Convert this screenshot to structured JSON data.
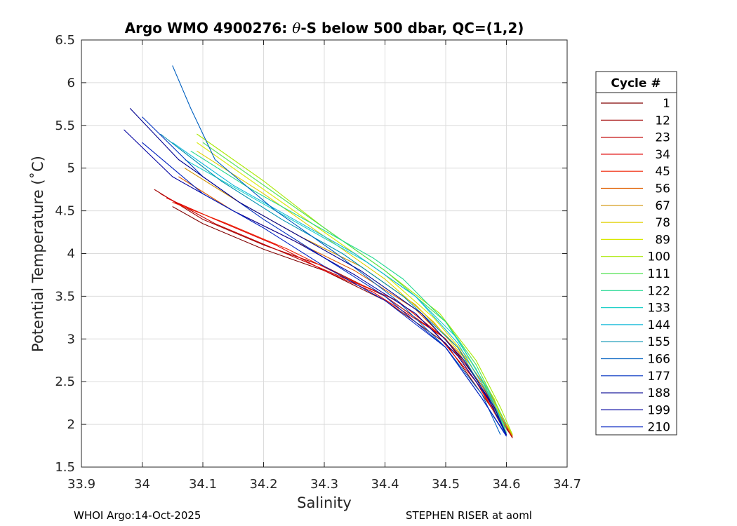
{
  "chart_data": {
    "type": "line",
    "title": "Argo WMO 4900276: θ-S below 500 dbar,  QC=(1,2)",
    "title_parts": {
      "prefix": "Argo WMO 4900276: ",
      "theta": "θ",
      "suffix": "-S below 500 dbar,  QC=(1,2)"
    },
    "xlabel": "Salinity",
    "ylabel": "Potential Temperature (˚C)",
    "xlim": [
      33.9,
      34.7
    ],
    "ylim": [
      1.5,
      6.5
    ],
    "xticks": [
      "33.9",
      "34",
      "34.1",
      "34.2",
      "34.3",
      "34.4",
      "34.5",
      "34.6",
      "34.7"
    ],
    "yticks": [
      "1.5",
      "2",
      "2.5",
      "3",
      "3.5",
      "4",
      "4.5",
      "5",
      "5.5",
      "6",
      "6.5"
    ],
    "grid": true,
    "legend": {
      "title": "Cycle #",
      "placement": "right",
      "entries": [
        {
          "label": "1",
          "color": "#800000"
        },
        {
          "label": "12",
          "color": "#a00000"
        },
        {
          "label": "23",
          "color": "#c00000"
        },
        {
          "label": "34",
          "color": "#e00000"
        },
        {
          "label": "45",
          "color": "#f02000"
        },
        {
          "label": "56",
          "color": "#e06000"
        },
        {
          "label": "67",
          "color": "#d09000"
        },
        {
          "label": "78",
          "color": "#e0d000"
        },
        {
          "label": "89",
          "color": "#d8e800"
        },
        {
          "label": "100",
          "color": "#a8e800"
        },
        {
          "label": "111",
          "color": "#50e050"
        },
        {
          "label": "122",
          "color": "#20d890"
        },
        {
          "label": "133",
          "color": "#20d0c8"
        },
        {
          "label": "144",
          "color": "#10b8d8"
        },
        {
          "label": "155",
          "color": "#0090b0"
        },
        {
          "label": "166",
          "color": "#0060c0"
        },
        {
          "label": "177",
          "color": "#0030c0"
        },
        {
          "label": "188",
          "color": "#000090"
        },
        {
          "label": "199",
          "color": "#0000a0"
        },
        {
          "label": "210",
          "color": "#0020c0"
        }
      ]
    },
    "series": [
      {
        "name": "1",
        "color": "#800000",
        "points": [
          [
            34.05,
            4.55
          ],
          [
            34.1,
            4.35
          ],
          [
            34.2,
            4.05
          ],
          [
            34.3,
            3.8
          ],
          [
            34.4,
            3.45
          ],
          [
            34.5,
            2.95
          ],
          [
            34.55,
            2.45
          ],
          [
            34.61,
            1.85
          ]
        ]
      },
      {
        "name": "12",
        "color": "#a00000",
        "points": [
          [
            34.02,
            4.75
          ],
          [
            34.1,
            4.4
          ],
          [
            34.2,
            4.1
          ],
          [
            34.3,
            3.85
          ],
          [
            34.4,
            3.5
          ],
          [
            34.5,
            3.0
          ],
          [
            34.56,
            2.45
          ],
          [
            34.61,
            1.84
          ]
        ]
      },
      {
        "name": "23",
        "color": "#c00000",
        "points": [
          [
            34.03,
            4.7
          ],
          [
            34.12,
            4.35
          ],
          [
            34.22,
            4.05
          ],
          [
            34.32,
            3.75
          ],
          [
            34.42,
            3.45
          ],
          [
            34.5,
            3.0
          ],
          [
            34.56,
            2.4
          ],
          [
            34.61,
            1.85
          ]
        ]
      },
      {
        "name": "34",
        "color": "#e00000",
        "points": [
          [
            34.04,
            4.65
          ],
          [
            34.12,
            4.4
          ],
          [
            34.22,
            4.1
          ],
          [
            34.3,
            3.8
          ],
          [
            34.38,
            3.55
          ],
          [
            34.48,
            3.1
          ],
          [
            34.55,
            2.5
          ],
          [
            34.6,
            1.9
          ]
        ]
      },
      {
        "name": "45",
        "color": "#f02000",
        "points": [
          [
            34.05,
            4.6
          ],
          [
            34.14,
            4.35
          ],
          [
            34.24,
            4.05
          ],
          [
            34.34,
            3.7
          ],
          [
            34.42,
            3.45
          ],
          [
            34.5,
            3.0
          ],
          [
            34.56,
            2.4
          ],
          [
            34.6,
            1.88
          ]
        ]
      },
      {
        "name": "56",
        "color": "#e06000",
        "points": [
          [
            34.06,
            4.9
          ],
          [
            34.15,
            4.5
          ],
          [
            34.25,
            4.15
          ],
          [
            34.35,
            3.8
          ],
          [
            34.45,
            3.35
          ],
          [
            34.52,
            2.85
          ],
          [
            34.57,
            2.35
          ],
          [
            34.61,
            1.86
          ]
        ]
      },
      {
        "name": "67",
        "color": "#d09000",
        "points": [
          [
            34.07,
            5.0
          ],
          [
            34.16,
            4.6
          ],
          [
            34.26,
            4.2
          ],
          [
            34.36,
            3.85
          ],
          [
            34.45,
            3.4
          ],
          [
            34.52,
            2.9
          ],
          [
            34.57,
            2.4
          ],
          [
            34.61,
            1.87
          ]
        ]
      },
      {
        "name": "78",
        "color": "#e0d000",
        "points": [
          [
            34.09,
            5.2
          ],
          [
            34.2,
            4.7
          ],
          [
            34.3,
            4.2
          ],
          [
            34.4,
            3.7
          ],
          [
            34.48,
            3.2
          ],
          [
            34.54,
            2.7
          ],
          [
            34.58,
            2.25
          ],
          [
            34.61,
            1.88
          ]
        ]
      },
      {
        "name": "89",
        "color": "#d8e800",
        "points": [
          [
            34.09,
            5.3
          ],
          [
            34.2,
            4.75
          ],
          [
            34.3,
            4.25
          ],
          [
            34.4,
            3.75
          ],
          [
            34.48,
            3.25
          ],
          [
            34.54,
            2.75
          ],
          [
            34.58,
            2.3
          ],
          [
            34.6,
            1.9
          ]
        ]
      },
      {
        "name": "100",
        "color": "#a8e800",
        "points": [
          [
            34.09,
            5.4
          ],
          [
            34.2,
            4.85
          ],
          [
            34.3,
            4.3
          ],
          [
            34.4,
            3.8
          ],
          [
            34.49,
            3.3
          ],
          [
            34.55,
            2.75
          ],
          [
            34.59,
            2.2
          ],
          [
            34.61,
            1.88
          ]
        ]
      },
      {
        "name": "111",
        "color": "#50e050",
        "points": [
          [
            34.1,
            5.3
          ],
          [
            34.2,
            4.8
          ],
          [
            34.3,
            4.3
          ],
          [
            34.4,
            3.8
          ],
          [
            34.5,
            3.2
          ],
          [
            34.55,
            2.7
          ],
          [
            34.6,
            2.0
          ]
        ]
      },
      {
        "name": "122",
        "color": "#20d890",
        "points": [
          [
            34.08,
            5.2
          ],
          [
            34.18,
            4.75
          ],
          [
            34.28,
            4.35
          ],
          [
            34.38,
            3.95
          ],
          [
            34.43,
            3.7
          ],
          [
            34.5,
            3.2
          ],
          [
            34.55,
            2.65
          ],
          [
            34.6,
            1.95
          ]
        ]
      },
      {
        "name": "133",
        "color": "#20d0c8",
        "points": [
          [
            34.07,
            5.1
          ],
          [
            34.17,
            4.7
          ],
          [
            34.27,
            4.3
          ],
          [
            34.37,
            3.9
          ],
          [
            34.45,
            3.5
          ],
          [
            34.52,
            3.0
          ],
          [
            34.57,
            2.4
          ],
          [
            34.6,
            1.9
          ]
        ]
      },
      {
        "name": "144",
        "color": "#10b8d8",
        "points": [
          [
            34.05,
            5.3
          ],
          [
            34.15,
            4.8
          ],
          [
            34.25,
            4.4
          ],
          [
            34.35,
            4.0
          ],
          [
            34.45,
            3.5
          ],
          [
            34.52,
            2.95
          ],
          [
            34.57,
            2.35
          ],
          [
            34.6,
            1.88
          ]
        ]
      },
      {
        "name": "155",
        "color": "#0090b0",
        "points": [
          [
            34.03,
            5.4
          ],
          [
            34.13,
            4.85
          ],
          [
            34.23,
            4.4
          ],
          [
            34.33,
            4.0
          ],
          [
            34.43,
            3.5
          ],
          [
            34.52,
            2.9
          ],
          [
            34.57,
            2.3
          ],
          [
            34.6,
            1.87
          ]
        ]
      },
      {
        "name": "166",
        "color": "#0060c0",
        "points": [
          [
            34.05,
            6.2
          ],
          [
            34.08,
            5.7
          ],
          [
            34.12,
            5.1
          ],
          [
            34.22,
            4.5
          ],
          [
            34.32,
            4.0
          ],
          [
            34.42,
            3.45
          ],
          [
            34.5,
            2.9
          ],
          [
            34.56,
            2.35
          ],
          [
            34.59,
            1.88
          ]
        ]
      },
      {
        "name": "177",
        "color": "#0030c0",
        "points": [
          [
            34.0,
            5.6
          ],
          [
            34.1,
            4.9
          ],
          [
            34.2,
            4.4
          ],
          [
            34.3,
            3.95
          ],
          [
            34.4,
            3.5
          ],
          [
            34.5,
            2.9
          ],
          [
            34.56,
            2.3
          ],
          [
            34.6,
            1.87
          ]
        ]
      },
      {
        "name": "188",
        "color": "#000090",
        "points": [
          [
            33.98,
            5.7
          ],
          [
            34.06,
            5.1
          ],
          [
            34.16,
            4.6
          ],
          [
            34.26,
            4.2
          ],
          [
            34.36,
            3.8
          ],
          [
            34.46,
            3.3
          ],
          [
            34.53,
            2.75
          ],
          [
            34.58,
            2.2
          ],
          [
            34.6,
            1.88
          ]
        ]
      },
      {
        "name": "199",
        "color": "#0000a0",
        "points": [
          [
            33.97,
            5.45
          ],
          [
            34.05,
            4.9
          ],
          [
            34.15,
            4.5
          ],
          [
            34.25,
            4.15
          ],
          [
            34.35,
            3.75
          ],
          [
            34.45,
            3.3
          ],
          [
            34.52,
            2.8
          ],
          [
            34.57,
            2.3
          ],
          [
            34.6,
            1.88
          ]
        ]
      },
      {
        "name": "210",
        "color": "#0020c0",
        "points": [
          [
            34.0,
            5.3
          ],
          [
            34.1,
            4.7
          ],
          [
            34.2,
            4.3
          ],
          [
            34.3,
            3.85
          ],
          [
            34.4,
            3.45
          ],
          [
            34.5,
            2.9
          ],
          [
            34.56,
            2.3
          ],
          [
            34.6,
            1.86
          ]
        ]
      }
    ]
  },
  "footer": {
    "left": "WHOI Argo:14-Oct-2025",
    "right": "STEPHEN RISER at aoml"
  }
}
